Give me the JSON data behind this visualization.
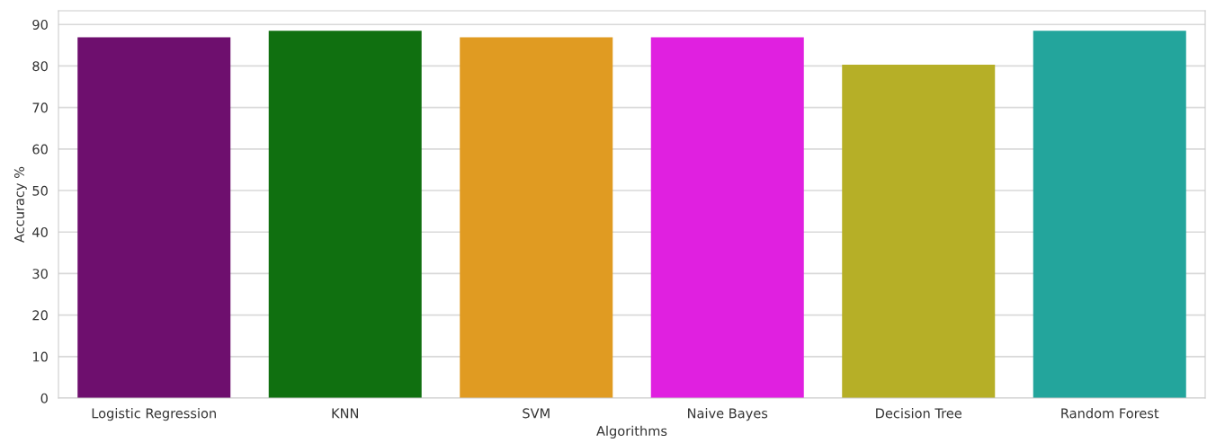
{
  "chart_data": {
    "type": "bar",
    "xlabel": "Algorithms",
    "ylabel": "Accuracy %",
    "categories": [
      "Logistic Regression",
      "KNN",
      "SVM",
      "Naive Bayes",
      "Decision Tree",
      "Random Forest"
    ],
    "values": [
      86.9,
      88.5,
      86.9,
      86.9,
      80.3,
      88.5
    ],
    "colors": [
      "#6e0f6e",
      "#107010",
      "#e09b22",
      "#e020e0",
      "#b6af27",
      "#23a59c"
    ],
    "ylim": [
      0,
      93.3
    ],
    "yticks": [
      0,
      10,
      20,
      30,
      40,
      50,
      60,
      70,
      80,
      90
    ],
    "grid": "y",
    "legend": false
  }
}
